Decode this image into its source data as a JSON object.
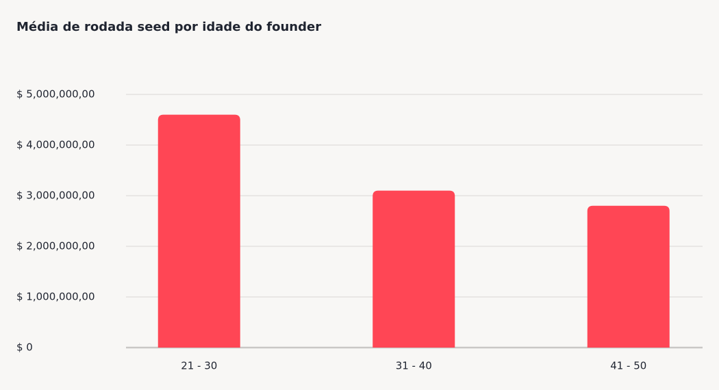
{
  "chart_data": {
    "type": "bar",
    "title": "Média de rodada seed por idade do founder",
    "categories": [
      "21 - 30",
      "31 - 40",
      "41 - 50"
    ],
    "values": [
      4600000,
      3100000,
      2800000
    ],
    "color": "#ff4655",
    "ylim": [
      0,
      5000000
    ],
    "yticks": [
      {
        "value": 0,
        "label": "$ 0"
      },
      {
        "value": 1000000,
        "label": "$ 1,000,000,00"
      },
      {
        "value": 2000000,
        "label": "$ 2,000,000,00"
      },
      {
        "value": 3000000,
        "label": "$ 3,000,000,00"
      },
      {
        "value": 4000000,
        "label": "$ 4,000,000,00"
      },
      {
        "value": 5000000,
        "label": "$ 5,000,000,00"
      }
    ],
    "grid": true
  }
}
